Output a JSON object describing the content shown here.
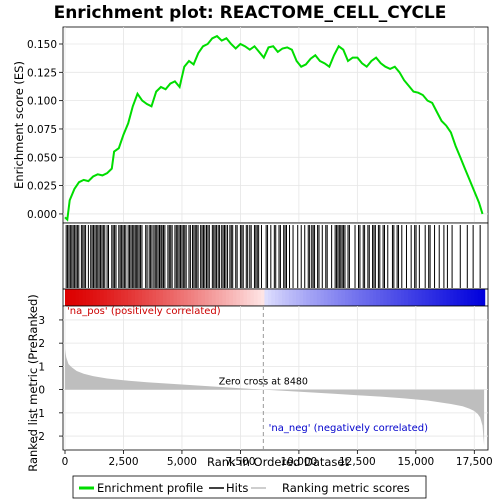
{
  "chart_data": {
    "type": "line",
    "title": "Enrichment plot: REACTOME_CELL_CYCLE",
    "xlabel": "Rank in Ordered Dataset",
    "ylabel_top": "Enrichment score (ES)",
    "ylabel_bottom": "Ranked list metric (PreRanked)",
    "x_range": [
      0,
      18000
    ],
    "x_ticks": [
      "0",
      "2,500",
      "5,000",
      "7,500",
      "10,000",
      "12,500",
      "15,000",
      "17,500"
    ],
    "x_tick_values": [
      0,
      2500,
      5000,
      7500,
      10000,
      12500,
      15000,
      17500
    ],
    "es_ylim": [
      -0.008,
      0.165
    ],
    "es_ticks": [
      "0.000",
      "0.025",
      "0.050",
      "0.075",
      "0.100",
      "0.125",
      "0.150"
    ],
    "es_tick_values": [
      0,
      0.025,
      0.05,
      0.075,
      0.1,
      0.125,
      0.15
    ],
    "es_curve": {
      "x": [
        0,
        100,
        200,
        400,
        600,
        800,
        1000,
        1200,
        1400,
        1600,
        1800,
        2000,
        2100,
        2300,
        2500,
        2700,
        2900,
        3100,
        3300,
        3500,
        3700,
        3900,
        4100,
        4300,
        4500,
        4700,
        4900,
        5100,
        5300,
        5500,
        5700,
        5900,
        6100,
        6300,
        6500,
        6700,
        6900,
        7100,
        7300,
        7500,
        7700,
        7900,
        8100,
        8300,
        8500,
        8700,
        8900,
        9100,
        9300,
        9500,
        9700,
        9900,
        10100,
        10300,
        10500,
        10700,
        10900,
        11100,
        11300,
        11500,
        11700,
        11900,
        12100,
        12300,
        12500,
        12700,
        12900,
        13100,
        13300,
        13500,
        13700,
        13900,
        14100,
        14300,
        14500,
        14700,
        14900,
        15100,
        15300,
        15500,
        15700,
        15900,
        16100,
        16300,
        16500,
        16700,
        16900,
        17100,
        17300,
        17500,
        17700,
        17850
      ],
      "y": [
        -0.003,
        -0.005,
        0.012,
        0.022,
        0.028,
        0.03,
        0.029,
        0.033,
        0.035,
        0.034,
        0.036,
        0.04,
        0.055,
        0.058,
        0.07,
        0.08,
        0.095,
        0.106,
        0.1,
        0.097,
        0.095,
        0.108,
        0.112,
        0.11,
        0.115,
        0.117,
        0.112,
        0.13,
        0.135,
        0.132,
        0.142,
        0.148,
        0.15,
        0.155,
        0.157,
        0.153,
        0.155,
        0.15,
        0.146,
        0.15,
        0.148,
        0.145,
        0.148,
        0.143,
        0.138,
        0.147,
        0.148,
        0.143,
        0.146,
        0.147,
        0.145,
        0.135,
        0.13,
        0.132,
        0.137,
        0.14,
        0.135,
        0.133,
        0.13,
        0.14,
        0.148,
        0.145,
        0.135,
        0.138,
        0.138,
        0.133,
        0.13,
        0.135,
        0.138,
        0.133,
        0.13,
        0.128,
        0.13,
        0.125,
        0.118,
        0.113,
        0.108,
        0.107,
        0.105,
        0.1,
        0.098,
        0.09,
        0.082,
        0.078,
        0.072,
        0.06,
        0.05,
        0.04,
        0.03,
        0.02,
        0.01,
        0.0
      ]
    },
    "hit_segments": [
      [
        50,
        600
      ],
      [
        700,
        900
      ],
      [
        1000,
        1050
      ],
      [
        1100,
        1700
      ],
      [
        1800,
        1900
      ],
      [
        2000,
        2200
      ],
      [
        2300,
        2600
      ],
      [
        2700,
        3000
      ],
      [
        3050,
        3300
      ],
      [
        3450,
        3550
      ],
      [
        3600,
        3750
      ],
      [
        3800,
        4100
      ],
      [
        4150,
        4300
      ],
      [
        4400,
        4600
      ],
      [
        4700,
        4950
      ],
      [
        5000,
        5200
      ],
      [
        5300,
        5400
      ],
      [
        5450,
        5700
      ],
      [
        5800,
        6000
      ],
      [
        6050,
        6200
      ],
      [
        6300,
        6500
      ],
      [
        6550,
        6650
      ],
      [
        6700,
        6900
      ],
      [
        6950,
        7000
      ],
      [
        7050,
        7200
      ],
      [
        7300,
        7400
      ],
      [
        7500,
        7650
      ],
      [
        7750,
        7850
      ],
      [
        7900,
        8000
      ],
      [
        8100,
        8300
      ],
      [
        8400,
        8450
      ],
      [
        8600,
        8700
      ],
      [
        8800,
        8850
      ],
      [
        8950,
        9050
      ],
      [
        9150,
        9250
      ],
      [
        9350,
        9500
      ],
      [
        9600,
        9650
      ],
      [
        9750,
        9800
      ],
      [
        9950,
        10000
      ],
      [
        10100,
        10150
      ],
      [
        10250,
        10300
      ],
      [
        10400,
        10500
      ],
      [
        10550,
        10700
      ],
      [
        10800,
        10900
      ],
      [
        11000,
        11050
      ],
      [
        11150,
        11250
      ],
      [
        11400,
        11450
      ],
      [
        11550,
        11800
      ],
      [
        11850,
        12000
      ],
      [
        12100,
        12200
      ],
      [
        12400,
        12450
      ],
      [
        12550,
        12650
      ],
      [
        12750,
        12850
      ],
      [
        12950,
        13050
      ],
      [
        13150,
        13300
      ],
      [
        13400,
        13500
      ],
      [
        13600,
        13700
      ],
      [
        13800,
        13850
      ],
      [
        14000,
        14100
      ],
      [
        14200,
        14300
      ],
      [
        14400,
        14450
      ],
      [
        14600,
        14650
      ],
      [
        14800,
        14850
      ],
      [
        14950,
        15050
      ],
      [
        15150,
        15200
      ],
      [
        15400,
        15450
      ],
      [
        15550,
        15650
      ],
      [
        15800,
        15850
      ],
      [
        16000,
        16050
      ],
      [
        16200,
        16250
      ],
      [
        16350,
        16400
      ],
      [
        16550,
        16600
      ],
      [
        16900,
        16950
      ],
      [
        17200,
        17250
      ],
      [
        17450,
        17500
      ],
      [
        17750,
        17800
      ]
    ],
    "metric_ylim": [
      -2.6,
      3.6
    ],
    "metric_ticks": [
      "-2",
      "-1",
      "0",
      "1",
      "2",
      "3"
    ],
    "metric_tick_values": [
      -2,
      -1,
      0,
      1,
      2,
      3
    ],
    "metric_curve": {
      "x": [
        0,
        50,
        150,
        300,
        500,
        800,
        1200,
        1800,
        2500,
        3500,
        4500,
        5500,
        6500,
        7500,
        8480,
        9500,
        10500,
        11500,
        12500,
        13500,
        14500,
        15500,
        16000,
        16500,
        17000,
        17300,
        17500,
        17650,
        17750,
        17850,
        17920
      ],
      "y": [
        1.75,
        1.4,
        1.1,
        0.95,
        0.8,
        0.68,
        0.58,
        0.48,
        0.4,
        0.32,
        0.25,
        0.19,
        0.12,
        0.06,
        0.0,
        -0.06,
        -0.12,
        -0.18,
        -0.24,
        -0.3,
        -0.38,
        -0.47,
        -0.54,
        -0.62,
        -0.72,
        -0.82,
        -0.92,
        -1.05,
        -1.2,
        -1.55,
        -2.4
      ]
    },
    "zero_cross_label": "Zero cross at 8480",
    "zero_cross_x": 8480,
    "pos_label": "'na_pos' (positively correlated)",
    "neg_label": "'na_neg' (negatively correlated)",
    "legend": [
      "Enrichment profile",
      "Hits",
      "Ranking metric scores"
    ],
    "colors": {
      "es_line": "#00dd00",
      "hits": "#000000",
      "metric_fill": "#bebebe",
      "pos_text": "#cc0000",
      "neg_text": "#0000cc",
      "bar_red": "#dd0000",
      "bar_blue": "#0000dd"
    }
  }
}
